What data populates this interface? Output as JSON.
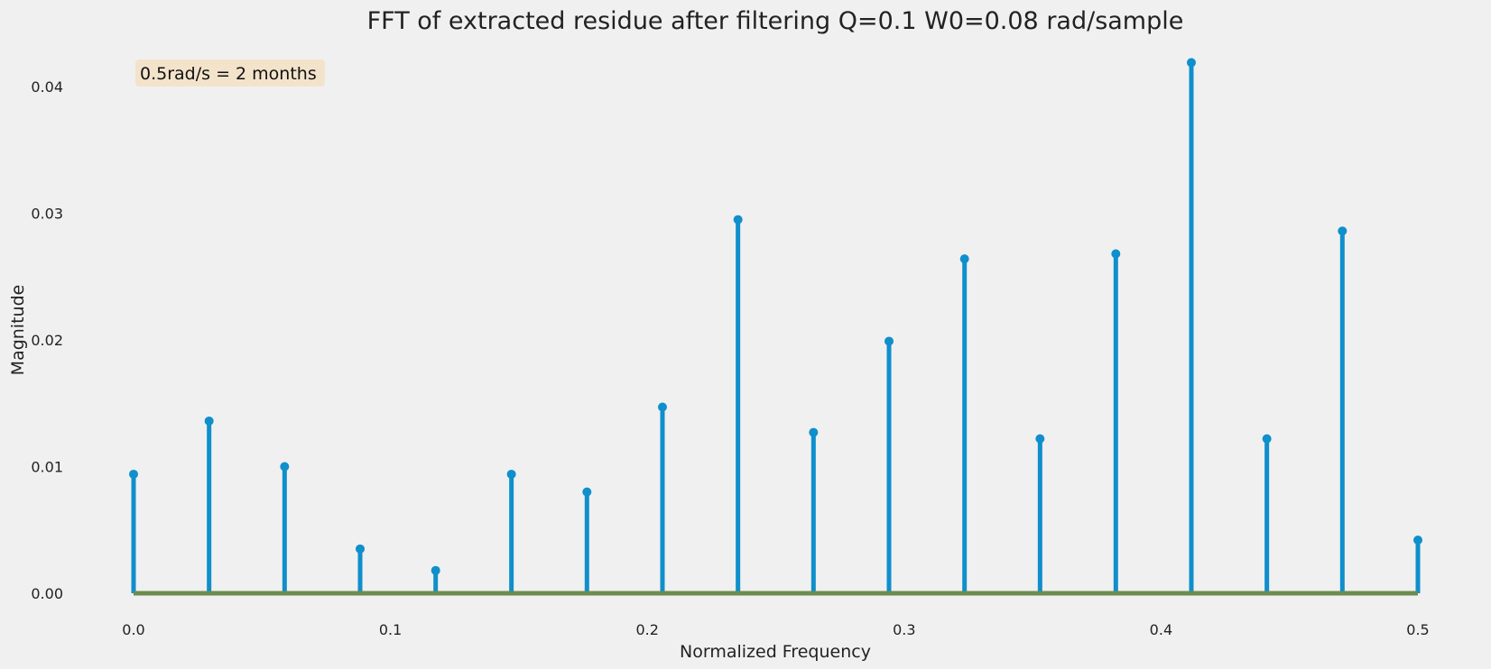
{
  "chart_data": {
    "type": "stem",
    "title": "FFT of extracted residue after filtering Q=0.1 W0=0.08 rad/sample",
    "xlabel": "Normalized Frequency",
    "ylabel": "Magnitude",
    "xlim": [
      0.0,
      0.5
    ],
    "ylim": [
      0.0,
      0.042
    ],
    "xticks": [
      "0.0",
      "0.1",
      "0.2",
      "0.3",
      "0.4",
      "0.5"
    ],
    "yticks": [
      "0.00",
      "0.01",
      "0.02",
      "0.03",
      "0.04"
    ],
    "grid": false,
    "annotation": "0.5rad/s = 2 months",
    "x": [
      0.0,
      0.0294,
      0.0588,
      0.0882,
      0.1176,
      0.1471,
      0.1765,
      0.2059,
      0.2353,
      0.2647,
      0.2941,
      0.3235,
      0.3529,
      0.3824,
      0.4118,
      0.4412,
      0.4706,
      0.5
    ],
    "y": [
      0.0094,
      0.0136,
      0.01,
      0.0035,
      0.0018,
      0.0094,
      0.008,
      0.0147,
      0.0295,
      0.0127,
      0.0199,
      0.0264,
      0.0122,
      0.0268,
      0.0419,
      0.0122,
      0.0286,
      0.0042
    ],
    "colors": {
      "stem": "#0f8fcc",
      "baseline": "#6b8c4e",
      "annotation_bg": "#f3e3cb",
      "background": "#f0f0f0"
    }
  }
}
